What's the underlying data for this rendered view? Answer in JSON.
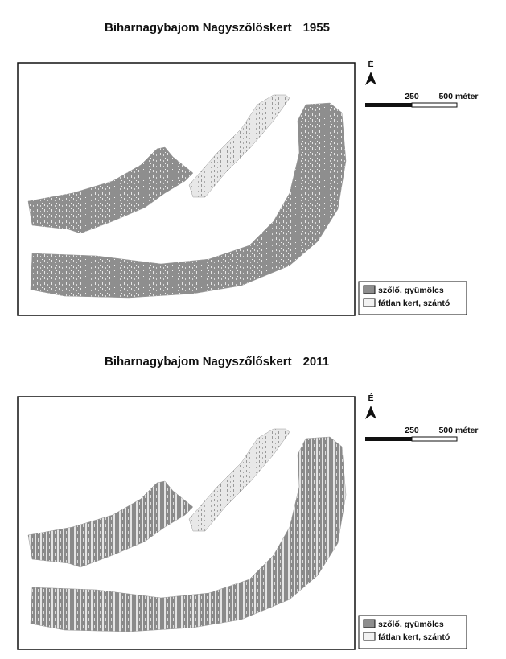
{
  "maps": [
    {
      "title": "Biharnagybajom Nagyszőlőskert",
      "year": "1955",
      "north": "É",
      "scale_labels": [
        "250",
        "500 méter"
      ],
      "legend": [
        {
          "label": "szőlő, gyümölcs"
        },
        {
          "label": "fátlan kert, szántó"
        }
      ]
    },
    {
      "title": "Biharnagybajom Nagyszőlőskert",
      "year": "2011",
      "north": "É",
      "scale_labels": [
        "250",
        "500 méter"
      ],
      "legend": [
        {
          "label": "szőlő, gyümölcs"
        },
        {
          "label": "fátlan kert, szántó"
        }
      ]
    }
  ]
}
